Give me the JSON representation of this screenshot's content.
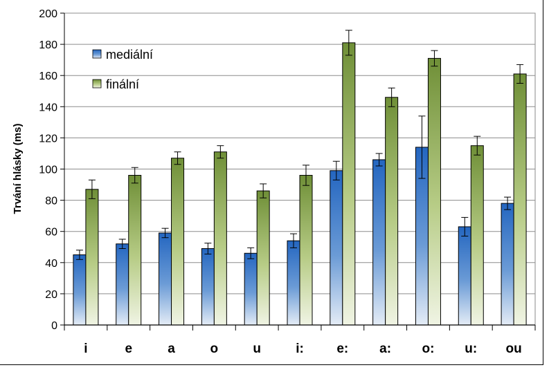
{
  "chart_data": {
    "type": "bar",
    "title": "",
    "xlabel": "",
    "ylabel": "Trvání hlásky (ms)",
    "ylim": [
      0,
      200
    ],
    "yticks": [
      0,
      20,
      40,
      60,
      80,
      100,
      120,
      140,
      160,
      180,
      200
    ],
    "grid": true,
    "legend_position": "top-left",
    "categories": [
      "i",
      "e",
      "a",
      "o",
      "u",
      "i:",
      "e:",
      "a:",
      "o:",
      "u:",
      "ou"
    ],
    "series": [
      {
        "name": "mediální",
        "color": "#2e6dc4",
        "values": [
          45,
          52,
          59,
          49,
          46,
          54,
          99,
          106,
          114,
          63,
          78
        ],
        "error": [
          3,
          3,
          3,
          3.5,
          3.5,
          4.5,
          6,
          4,
          20,
          6,
          4
        ]
      },
      {
        "name": "finální",
        "color": "#76923c",
        "values": [
          87,
          96,
          107,
          111,
          86,
          96,
          181,
          146,
          171,
          115,
          161
        ],
        "error": [
          6,
          5,
          4,
          4,
          4.5,
          6.5,
          8,
          6,
          5,
          6,
          6
        ]
      }
    ]
  }
}
